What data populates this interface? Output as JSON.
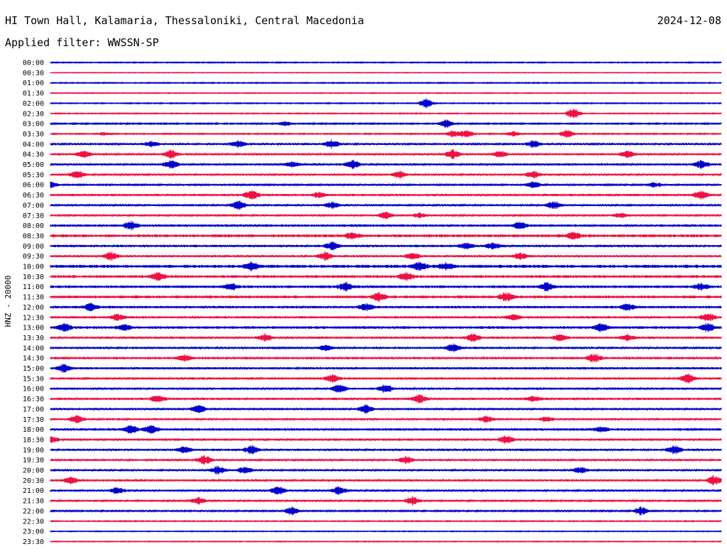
{
  "header": {
    "station": "HI Town Hall, Kalamaria, Thessaloniki, Central Macedonia",
    "date": "2024-12-08",
    "filter": "Applied filter: WWSSN-SP"
  },
  "chart_data": {
    "type": "line",
    "title": "HI Town Hall, Kalamaria, Thessaloniki, Central Macedonia",
    "ylabel": "HNZ - 20000",
    "xlabel": "",
    "grid": false,
    "row_labels": [
      "00:00",
      "00:30",
      "01:00",
      "01:30",
      "02:00",
      "02:30",
      "03:00",
      "03:30",
      "04:00",
      "04:30",
      "05:00",
      "05:30",
      "06:00",
      "06:30",
      "07:00",
      "07:30",
      "08:00",
      "08:30",
      "09:00",
      "09:30",
      "10:00",
      "10:30",
      "11:00",
      "11:30",
      "12:00",
      "12:30",
      "13:00",
      "13:30",
      "14:00",
      "14:30",
      "15:00",
      "15:30",
      "16:00",
      "16:30",
      "17:00",
      "17:30",
      "18:00",
      "18:30",
      "19:00",
      "19:30",
      "20:00",
      "20:30",
      "21:00",
      "21:30",
      "22:00",
      "22:30",
      "23:00",
      "23:30"
    ],
    "trace_colors": [
      "#0000cc",
      "#ee1144"
    ],
    "noise_levels": [
      0.6,
      0.4,
      0.6,
      0.5,
      0.6,
      0.6,
      0.8,
      0.7,
      1.2,
      1.3,
      1.3,
      1.2,
      1.0,
      1.4,
      1.2,
      1.1,
      1.5,
      1.8,
      1.4,
      1.3,
      1.9,
      1.7,
      1.6,
      1.7,
      1.5,
      1.4,
      1.6,
      1.4,
      1.3,
      1.5,
      1.4,
      1.4,
      1.3,
      1.4,
      1.3,
      1.3,
      1.5,
      1.4,
      1.3,
      1.3,
      1.2,
      1.3,
      1.2,
      1.1,
      1.0,
      0.6,
      0.5,
      0.5
    ],
    "bursts": [
      [],
      [],
      [],
      [],
      [
        [
          0.56,
          6
        ]
      ],
      [
        [
          0.78,
          7
        ]
      ],
      [
        [
          0.35,
          3
        ],
        [
          0.59,
          5
        ]
      ],
      [
        [
          0.08,
          2
        ],
        [
          0.6,
          4
        ],
        [
          0.62,
          5
        ],
        [
          0.69,
          3
        ],
        [
          0.77,
          5
        ]
      ],
      [
        [
          0.15,
          3
        ],
        [
          0.28,
          4
        ],
        [
          0.42,
          5
        ],
        [
          0.72,
          4
        ]
      ],
      [
        [
          0.05,
          4
        ],
        [
          0.18,
          5
        ],
        [
          0.6,
          5
        ],
        [
          0.67,
          4
        ],
        [
          0.86,
          4
        ]
      ],
      [
        [
          0.18,
          5
        ],
        [
          0.36,
          3
        ],
        [
          0.45,
          5
        ],
        [
          0.97,
          5
        ]
      ],
      [
        [
          0.04,
          5
        ],
        [
          0.52,
          4
        ],
        [
          0.72,
          4
        ]
      ],
      [
        [
          0.0,
          4
        ],
        [
          0.72,
          4
        ],
        [
          0.9,
          3
        ]
      ],
      [
        [
          0.3,
          6
        ],
        [
          0.4,
          3
        ],
        [
          0.97,
          5
        ]
      ],
      [
        [
          0.28,
          5
        ],
        [
          0.42,
          4
        ],
        [
          0.75,
          5
        ]
      ],
      [
        [
          0.5,
          4
        ],
        [
          0.55,
          3
        ],
        [
          0.85,
          3
        ]
      ],
      [
        [
          0.12,
          5
        ],
        [
          0.7,
          4
        ]
      ],
      [
        [
          0.45,
          4
        ],
        [
          0.78,
          4
        ]
      ],
      [
        [
          0.42,
          5
        ],
        [
          0.62,
          4
        ],
        [
          0.66,
          4
        ]
      ],
      [
        [
          0.09,
          5
        ],
        [
          0.41,
          5
        ],
        [
          0.54,
          4
        ],
        [
          0.7,
          4
        ]
      ],
      [
        [
          0.3,
          5
        ],
        [
          0.55,
          5
        ],
        [
          0.59,
          4
        ]
      ],
      [
        [
          0.16,
          5
        ],
        [
          0.53,
          5
        ]
      ],
      [
        [
          0.27,
          4
        ],
        [
          0.44,
          5
        ],
        [
          0.74,
          5
        ],
        [
          0.97,
          4
        ]
      ],
      [
        [
          0.49,
          5
        ],
        [
          0.68,
          5
        ]
      ],
      [
        [
          0.06,
          4
        ],
        [
          0.47,
          4
        ],
        [
          0.86,
          4
        ]
      ],
      [
        [
          0.1,
          4
        ],
        [
          0.69,
          3
        ],
        [
          0.98,
          5
        ]
      ],
      [
        [
          0.02,
          5
        ],
        [
          0.11,
          4
        ],
        [
          0.82,
          5
        ],
        [
          0.98,
          5
        ]
      ],
      [
        [
          0.32,
          4
        ],
        [
          0.63,
          5
        ],
        [
          0.76,
          4
        ],
        [
          0.86,
          3
        ]
      ],
      [
        [
          0.41,
          3
        ],
        [
          0.6,
          5
        ]
      ],
      [
        [
          0.2,
          4
        ],
        [
          0.81,
          5
        ]
      ],
      [
        [
          0.02,
          5
        ]
      ],
      [
        [
          0.42,
          5
        ],
        [
          0.95,
          6
        ]
      ],
      [
        [
          0.43,
          5
        ],
        [
          0.5,
          5
        ]
      ],
      [
        [
          0.16,
          4
        ],
        [
          0.55,
          5
        ],
        [
          0.72,
          3
        ]
      ],
      [
        [
          0.22,
          5
        ],
        [
          0.47,
          5
        ]
      ],
      [
        [
          0.04,
          5
        ],
        [
          0.65,
          4
        ],
        [
          0.74,
          3
        ]
      ],
      [
        [
          0.12,
          5
        ],
        [
          0.15,
          5
        ],
        [
          0.82,
          3
        ]
      ],
      [
        [
          0.0,
          4
        ],
        [
          0.68,
          5
        ]
      ],
      [
        [
          0.2,
          4
        ],
        [
          0.3,
          5
        ],
        [
          0.93,
          5
        ]
      ],
      [
        [
          0.23,
          6
        ],
        [
          0.53,
          4
        ]
      ],
      [
        [
          0.25,
          5
        ],
        [
          0.29,
          4
        ],
        [
          0.79,
          4
        ]
      ],
      [
        [
          0.03,
          4
        ],
        [
          0.99,
          6
        ]
      ],
      [
        [
          0.1,
          4
        ],
        [
          0.34,
          5
        ],
        [
          0.43,
          5
        ]
      ],
      [
        [
          0.22,
          4
        ],
        [
          0.54,
          5
        ]
      ],
      [
        [
          0.36,
          5
        ],
        [
          0.88,
          5
        ]
      ],
      [],
      [],
      []
    ]
  }
}
